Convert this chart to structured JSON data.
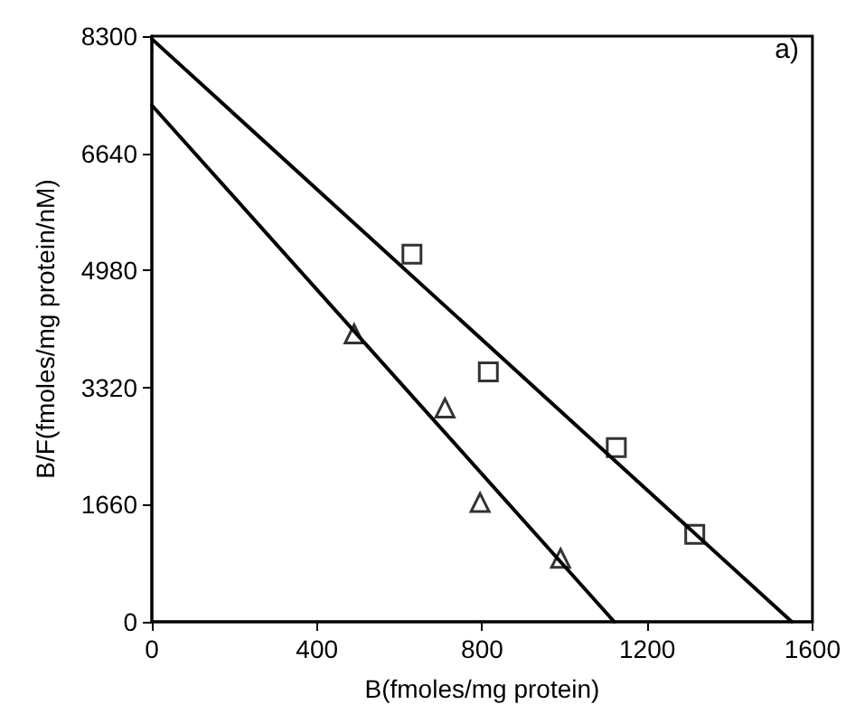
{
  "chart_data": {
    "type": "scatter",
    "xlabel": "B(fmoles/mg protein)",
    "ylabel": "B/F(fmoles/mg protein/nM)",
    "annotations": [
      "a)"
    ],
    "xlim": [
      0,
      1600
    ],
    "xticks": [
      0,
      400,
      800,
      1200,
      1600
    ],
    "ylim": [
      0,
      8300
    ],
    "yticks": [
      0,
      1660,
      3320,
      4980,
      6640,
      8300
    ],
    "grid": false,
    "series": [
      {
        "marker": "square",
        "color": "#000000",
        "x": [
          630,
          815,
          1125,
          1315
        ],
        "values": [
          5210,
          3540,
          2470,
          1240
        ]
      },
      {
        "marker": "triangle",
        "color": "#000000",
        "x": [
          490,
          710,
          795,
          990
        ],
        "values": [
          4080,
          3030,
          1690,
          900
        ]
      },
      {
        "type": "line",
        "marker": "none",
        "color": "#000000",
        "x": [
          0,
          1550
        ],
        "values": [
          8260,
          0
        ]
      },
      {
        "type": "line",
        "marker": "none",
        "color": "#000000",
        "x": [
          0,
          1120
        ],
        "values": [
          7320,
          0
        ]
      }
    ]
  }
}
